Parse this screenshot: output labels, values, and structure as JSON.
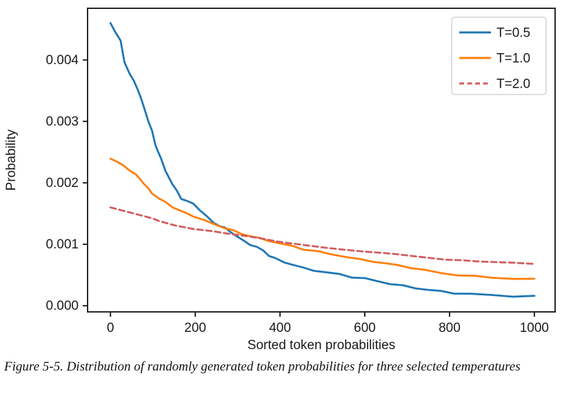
{
  "figure": {
    "caption": "Figure 5-5. Distribution of randomly generated token probabilities for three selected temperatures"
  },
  "colors": {
    "axis": "#262626",
    "text": "#1a1a1a",
    "legend_border": "#d4d4d4",
    "background": "#ffffff"
  },
  "chart_data": {
    "type": "line",
    "title": "",
    "xlabel": "Sorted token probabilities",
    "ylabel": "Probability",
    "grid": false,
    "legend_position": "upper right",
    "xlim": [
      -54,
      1049
    ],
    "ylim": [
      -0.0001,
      0.00484
    ],
    "x_ticks": [
      0,
      200,
      400,
      600,
      800,
      1000
    ],
    "x_tick_labels": [
      "0",
      "200",
      "400",
      "600",
      "800",
      "1000"
    ],
    "y_ticks": [
      0.0,
      0.001,
      0.002,
      0.003,
      0.004
    ],
    "y_tick_labels": [
      "0.000",
      "0.001",
      "0.002",
      "0.003",
      "0.004"
    ],
    "series": [
      {
        "name": "T=0.5",
        "color": "#1f77b4",
        "style": "solid",
        "jitter": 1.2,
        "points": [
          [
            0,
            0.0046
          ],
          [
            10,
            0.00448
          ],
          [
            24,
            0.0043
          ],
          [
            33,
            0.00397
          ],
          [
            45,
            0.00378
          ],
          [
            55,
            0.00365
          ],
          [
            65,
            0.00352
          ],
          [
            73,
            0.00335
          ],
          [
            81,
            0.00318
          ],
          [
            90,
            0.003
          ],
          [
            98,
            0.00284
          ],
          [
            106,
            0.00262
          ],
          [
            112,
            0.00252
          ],
          [
            119,
            0.00239
          ],
          [
            130,
            0.0022
          ],
          [
            146,
            0.00198
          ],
          [
            157,
            0.00186
          ],
          [
            167,
            0.00175
          ],
          [
            180,
            0.0017
          ],
          [
            195,
            0.00166
          ],
          [
            210,
            0.00157
          ],
          [
            228,
            0.00144
          ],
          [
            244,
            0.00135
          ],
          [
            258,
            0.0013
          ],
          [
            270,
            0.00126
          ],
          [
            285,
            0.0012
          ],
          [
            300,
            0.00112
          ],
          [
            317,
            0.00104
          ],
          [
            330,
            0.001
          ],
          [
            345,
            0.00095
          ],
          [
            360,
            0.0009
          ],
          [
            374,
            0.00082
          ],
          [
            390,
            0.00076
          ],
          [
            410,
            0.00071
          ],
          [
            430,
            0.00067
          ],
          [
            455,
            0.00061
          ],
          [
            480,
            0.00058
          ],
          [
            510,
            0.00054
          ],
          [
            540,
            0.00051
          ],
          [
            570,
            0.00047
          ],
          [
            600,
            0.00044
          ],
          [
            630,
            0.0004
          ],
          [
            660,
            0.00036
          ],
          [
            690,
            0.00032
          ],
          [
            720,
            0.00029
          ],
          [
            750,
            0.00026
          ],
          [
            780,
            0.00023
          ],
          [
            810,
            0.00021
          ],
          [
            850,
            0.00019
          ],
          [
            900,
            0.00017
          ],
          [
            950,
            0.00016
          ],
          [
            1000,
            0.00015
          ]
        ]
      },
      {
        "name": "T=1.0",
        "color": "#ff7f0e",
        "style": "solid",
        "jitter": 0.8,
        "points": [
          [
            0,
            0.0024
          ],
          [
            16,
            0.00234
          ],
          [
            30,
            0.00228
          ],
          [
            45,
            0.00221
          ],
          [
            60,
            0.00213
          ],
          [
            70,
            0.00206
          ],
          [
            80,
            0.00198
          ],
          [
            90,
            0.0019
          ],
          [
            98,
            0.00183
          ],
          [
            114,
            0.00175
          ],
          [
            130,
            0.00168
          ],
          [
            146,
            0.00161
          ],
          [
            163,
            0.00155
          ],
          [
            180,
            0.0015
          ],
          [
            195,
            0.00146
          ],
          [
            220,
            0.00139
          ],
          [
            244,
            0.00133
          ],
          [
            268,
            0.00127
          ],
          [
            290,
            0.00122
          ],
          [
            310,
            0.00117
          ],
          [
            330,
            0.00113
          ],
          [
            350,
            0.0011
          ],
          [
            374,
            0.00106
          ],
          [
            400,
            0.00101
          ],
          [
            430,
            0.00097
          ],
          [
            455,
            0.00092
          ],
          [
            490,
            0.00088
          ],
          [
            520,
            0.00084
          ],
          [
            553,
            0.0008
          ],
          [
            590,
            0.00075
          ],
          [
            620,
            0.00072
          ],
          [
            650,
            0.00069
          ],
          [
            675,
            0.00066
          ],
          [
            710,
            0.00062
          ],
          [
            740,
            0.00058
          ],
          [
            780,
            0.00053
          ],
          [
            820,
            0.0005
          ],
          [
            860,
            0.00048
          ],
          [
            900,
            0.00046
          ],
          [
            950,
            0.00044
          ],
          [
            1000,
            0.00043
          ]
        ]
      },
      {
        "name": "T=2.0",
        "color": "#d25c5e",
        "style": "dashed",
        "jitter": 0,
        "points": [
          [
            0,
            0.0016
          ],
          [
            50,
            0.00151
          ],
          [
            100,
            0.00142
          ],
          [
            114,
            0.00138
          ],
          [
            150,
            0.00131
          ],
          [
            195,
            0.00125
          ],
          [
            244,
            0.00121
          ],
          [
            280,
            0.00117
          ],
          [
            325,
            0.00113
          ],
          [
            360,
            0.00109
          ],
          [
            390,
            0.00105
          ],
          [
            420,
            0.00102
          ],
          [
            455,
            0.00099
          ],
          [
            500,
            0.00095
          ],
          [
            553,
            0.00091
          ],
          [
            600,
            0.00088
          ],
          [
            640,
            0.00086
          ],
          [
            675,
            0.00084
          ],
          [
            710,
            0.00081
          ],
          [
            750,
            0.00078
          ],
          [
            790,
            0.00075
          ],
          [
            830,
            0.00074
          ],
          [
            870,
            0.00072
          ],
          [
            910,
            0.00071
          ],
          [
            950,
            0.0007
          ],
          [
            1000,
            0.00068
          ]
        ]
      }
    ]
  }
}
